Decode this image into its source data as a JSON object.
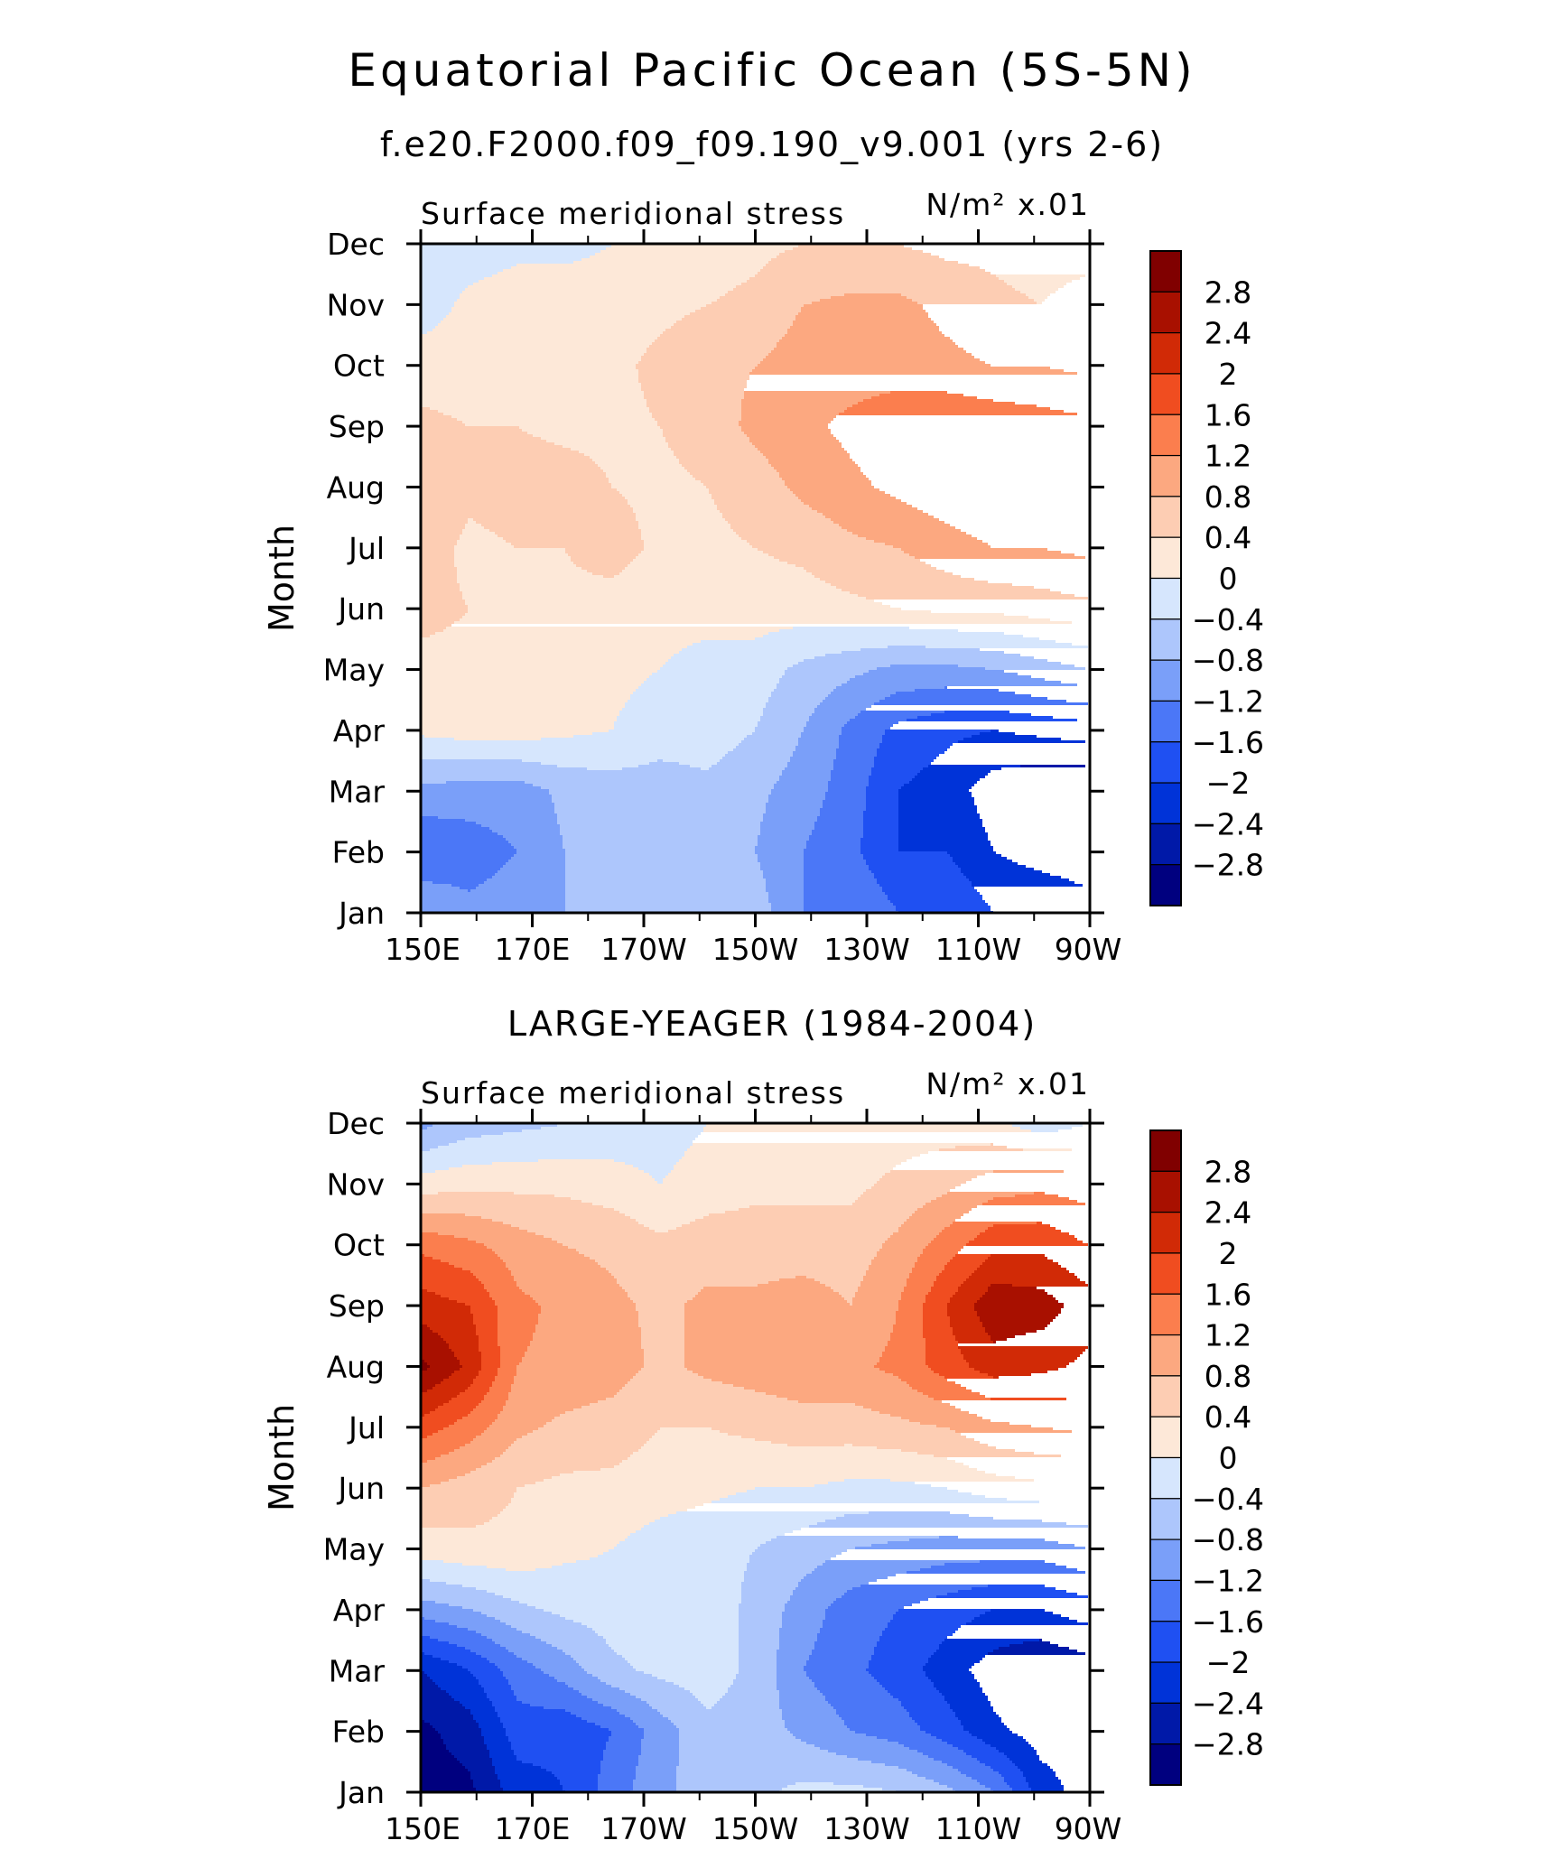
{
  "figure": {
    "title": "Equatorial Pacific Ocean (5S-5N)",
    "subtitle": "f.e20.F2000.f09_f09.190_v9.001 (yrs 2-6)",
    "panel2_title": "LARGE-YEAGER (1984-2004)"
  },
  "chart_data": [
    {
      "type": "heatmap",
      "name": "f.e20.F2000.f09_f09.190_v9.001 (yrs 2-6)",
      "variable": "Surface meridional stress",
      "units": "N/m² x.01",
      "ylabel": "Month",
      "xticks": [
        "150E",
        "170E",
        "170W",
        "150W",
        "130W",
        "110W",
        "90W"
      ],
      "x_lon": [
        150,
        170,
        190,
        210,
        230,
        250,
        270
      ],
      "yticks": [
        "Jan",
        "Feb",
        "Mar",
        "Apr",
        "May",
        "Jun",
        "Jul",
        "Aug",
        "Sep",
        "Oct",
        "Nov",
        "Dec"
      ],
      "xlim": [
        150,
        270
      ],
      "ylim": [
        "Jan",
        "Dec"
      ],
      "z": [
        [
          -0.8,
          -1.1,
          -1.0,
          -0.8,
          -0.6,
          -0.6,
          -0.6,
          -0.6,
          -1.2,
          -1.2,
          -1.6,
          -1.6,
          -2.0,
          -2.0,
          -2.2
        ],
        [
          -1.6,
          -1.4,
          -1.2,
          -0.8,
          -0.7,
          -0.7,
          -0.7,
          -0.8,
          -1.2,
          -1.5,
          -2.0,
          -2.0,
          -2.4,
          -2.6,
          -2.7
        ],
        [
          -0.9,
          -1.0,
          -1.0,
          -0.7,
          -0.6,
          -0.6,
          -0.5,
          -0.7,
          -1.0,
          -1.4,
          -2.0,
          -2.2,
          -2.6,
          -2.8,
          -2.8
        ],
        [
          0.1,
          0.2,
          0.2,
          0.1,
          0.0,
          -0.2,
          -0.2,
          -0.4,
          -0.8,
          -1.3,
          -1.7,
          -1.9,
          -2.0,
          -1.9,
          -1.8
        ],
        [
          0.3,
          0.3,
          0.2,
          0.2,
          0.1,
          0.0,
          -0.1,
          -0.2,
          -0.5,
          -0.7,
          -0.9,
          -0.9,
          -0.8,
          -0.6,
          -0.4
        ],
        [
          0.5,
          0.4,
          0.3,
          0.3,
          0.2,
          0.1,
          0.1,
          0.2,
          0.2,
          0.3,
          0.4,
          0.5,
          0.5,
          0.6,
          0.7
        ],
        [
          0.6,
          0.3,
          0.4,
          0.4,
          0.6,
          0.3,
          0.3,
          0.4,
          0.5,
          0.7,
          0.8,
          1.0,
          1.2,
          1.2,
          1.3
        ],
        [
          0.8,
          0.5,
          0.6,
          0.6,
          0.4,
          0.3,
          0.4,
          0.6,
          0.9,
          1.1,
          1.3,
          1.5,
          1.6,
          1.6,
          1.5
        ],
        [
          0.5,
          0.4,
          0.4,
          0.3,
          0.3,
          0.4,
          0.6,
          0.9,
          1.1,
          1.3,
          1.5,
          1.6,
          1.5,
          1.4,
          1.3
        ],
        [
          0.2,
          0.2,
          0.2,
          0.2,
          0.3,
          0.5,
          0.7,
          0.8,
          1.0,
          1.0,
          1.0,
          0.9,
          0.8,
          0.8,
          0.7
        ],
        [
          -0.2,
          0.1,
          0.2,
          0.2,
          0.2,
          0.3,
          0.4,
          0.5,
          0.8,
          0.9,
          0.9,
          0.7,
          0.5,
          0.4,
          0.6
        ],
        [
          -0.3,
          -0.2,
          -0.1,
          -0.1,
          0.0,
          0.1,
          0.2,
          0.3,
          0.4,
          0.4,
          0.4,
          0.3,
          0.3,
          0.2,
          0.2
        ]
      ],
      "levels": [
        -2.8,
        -2.4,
        -2.0,
        -1.6,
        -1.2,
        -0.8,
        -0.4,
        0,
        0.4,
        0.8,
        1.2,
        1.6,
        2.0,
        2.4,
        2.8
      ],
      "colorbar_labels": [
        "2.8",
        "2.4",
        "2",
        "1.6",
        "1.2",
        "0.8",
        "0.4",
        "0",
        "−0.4",
        "−0.8",
        "−1.2",
        "−1.6",
        "−2",
        "−2.4",
        "−2.8"
      ]
    },
    {
      "type": "heatmap",
      "name": "LARGE-YEAGER (1984-2004)",
      "variable": "Surface meridional stress",
      "units": "N/m² x.01",
      "ylabel": "Month",
      "xticks": [
        "150E",
        "170E",
        "170W",
        "150W",
        "130W",
        "110W",
        "90W"
      ],
      "x_lon": [
        150,
        170,
        190,
        210,
        230,
        250,
        270
      ],
      "yticks": [
        "Jan",
        "Feb",
        "Mar",
        "Apr",
        "May",
        "Jun",
        "Jul",
        "Aug",
        "Sep",
        "Oct",
        "Nov",
        "Dec"
      ],
      "xlim": [
        150,
        270
      ],
      "ylim": [
        "Jan",
        "Dec"
      ],
      "z": [
        [
          -3.0,
          -2.9,
          -2.2,
          -2.0,
          -1.4,
          -0.9,
          -0.6,
          -0.5,
          -0.3,
          -0.3,
          -0.4,
          -0.7,
          -1.2,
          -2.2,
          -2.6
        ],
        [
          -2.9,
          -2.6,
          -1.8,
          -1.9,
          -1.6,
          -1.0,
          -0.5,
          -0.6,
          -0.9,
          -1.2,
          -1.4,
          -1.8,
          -2.3,
          -2.6,
          -2.6
        ],
        [
          -2.4,
          -2.0,
          -1.4,
          -1.0,
          -0.5,
          -0.3,
          -0.2,
          -0.5,
          -1.2,
          -1.5,
          -1.8,
          -2.2,
          -2.6,
          -2.8,
          -2.6
        ],
        [
          -1.0,
          -0.8,
          -0.5,
          -0.3,
          -0.2,
          -0.1,
          -0.2,
          -0.5,
          -1.0,
          -1.4,
          -1.6,
          -1.8,
          -2.0,
          -2.0,
          -1.8
        ],
        [
          0.2,
          0.3,
          0.3,
          0.1,
          0.0,
          -0.2,
          -0.3,
          -0.4,
          -0.6,
          -0.8,
          -0.9,
          -1.0,
          -1.0,
          -1.0,
          -0.8
        ],
        [
          0.8,
          0.6,
          0.4,
          0.3,
          0.3,
          0.2,
          0.1,
          0.0,
          0.0,
          -0.1,
          -0.1,
          0.0,
          0.2,
          0.3,
          0.3
        ],
        [
          1.8,
          1.4,
          0.9,
          0.7,
          0.6,
          0.4,
          0.4,
          0.5,
          0.6,
          0.6,
          0.7,
          0.8,
          1.1,
          1.2,
          1.3
        ],
        [
          2.9,
          2.3,
          1.2,
          1.1,
          1.0,
          0.7,
          0.9,
          1.0,
          1.1,
          1.1,
          1.3,
          1.8,
          2.2,
          2.1,
          1.9
        ],
        [
          2.2,
          2.0,
          1.3,
          1.1,
          0.9,
          0.7,
          0.9,
          0.9,
          1.0,
          0.8,
          1.2,
          2.0,
          2.7,
          2.6,
          2.2
        ],
        [
          1.5,
          1.3,
          1.0,
          0.8,
          0.7,
          0.5,
          0.6,
          0.6,
          0.6,
          0.6,
          0.9,
          1.4,
          1.9,
          1.9,
          1.6
        ],
        [
          0.2,
          0.3,
          0.3,
          0.3,
          0.2,
          0.0,
          0.2,
          0.3,
          0.3,
          0.3,
          0.5,
          0.7,
          1.0,
          1.1,
          1.0
        ],
        [
          -0.9,
          -0.6,
          -0.5,
          -0.4,
          -0.3,
          -0.2,
          0.0,
          0.1,
          0.2,
          0.1,
          0.2,
          0.2,
          0.1,
          -0.2,
          0.0
        ]
      ],
      "levels": [
        -2.8,
        -2.4,
        -2.0,
        -1.6,
        -1.2,
        -0.8,
        -0.4,
        0,
        0.4,
        0.8,
        1.2,
        1.6,
        2.0,
        2.4,
        2.8
      ],
      "colorbar_labels": [
        "2.8",
        "2.4",
        "2",
        "1.6",
        "1.2",
        "0.8",
        "0.4",
        "0",
        "−0.4",
        "−0.8",
        "−1.2",
        "−1.6",
        "−2",
        "−2.4",
        "−2.8"
      ]
    }
  ],
  "colors": [
    "#00007f",
    "#0019a8",
    "#0033d8",
    "#1f50f2",
    "#4b77f7",
    "#7a9ff9",
    "#adc6fc",
    "#d6e6fd",
    "#fde8d8",
    "#fdcdb3",
    "#fca880",
    "#fb7e4e",
    "#f04d20",
    "#d12a06",
    "#a81000",
    "#800000"
  ]
}
